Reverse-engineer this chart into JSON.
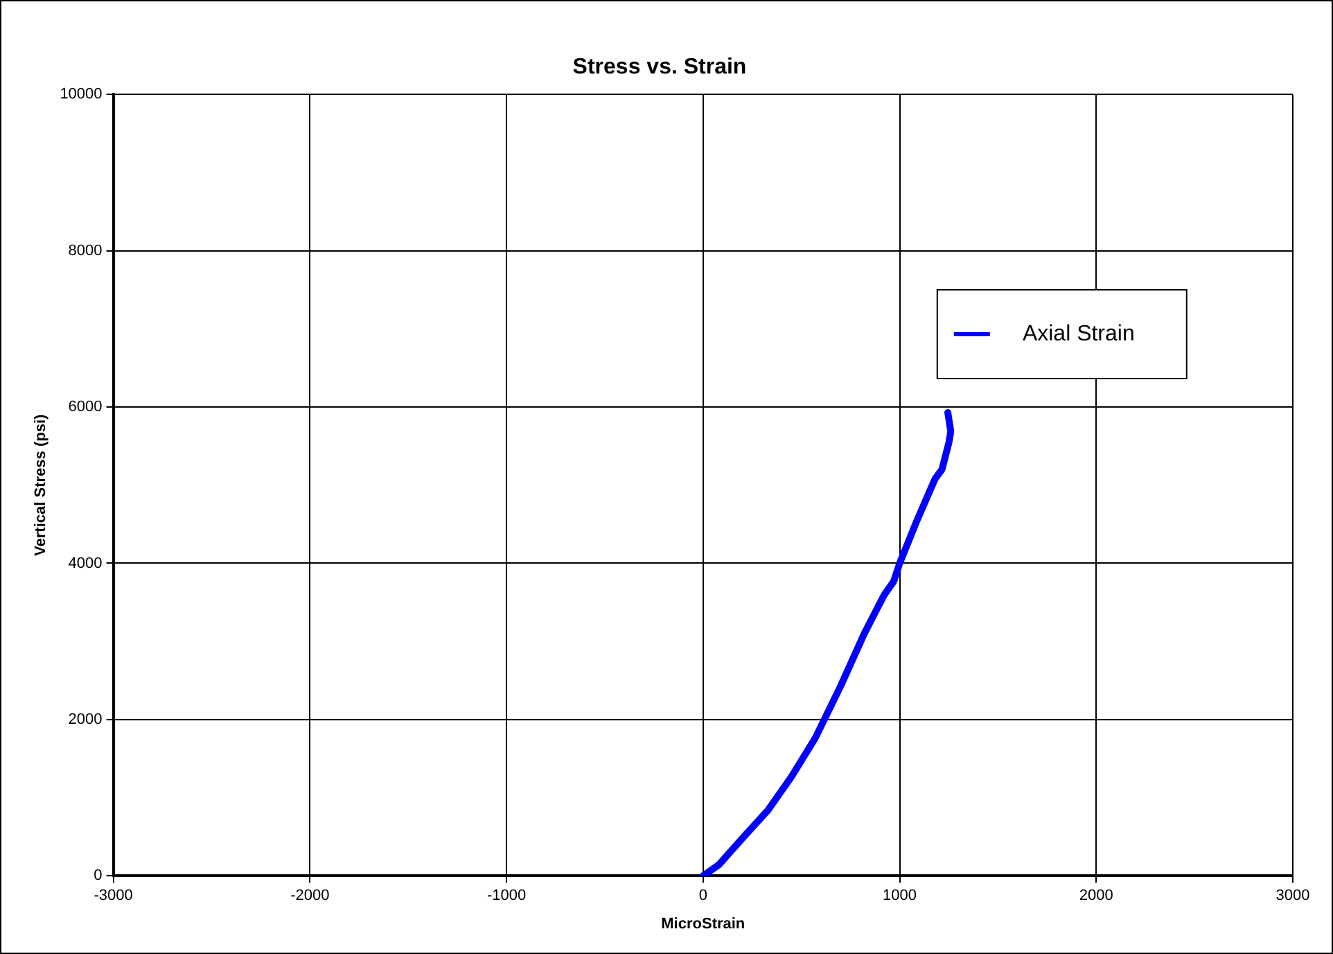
{
  "chart_data": {
    "type": "line",
    "title": "Stress vs. Strain",
    "xlabel": "MicroStrain",
    "ylabel": "Vertical Stress (psi)",
    "x": [
      0,
      80,
      200,
      330,
      450,
      570,
      700,
      820,
      920,
      970,
      1000,
      1090,
      1180,
      1215,
      1250,
      1260,
      1245
    ],
    "series": [
      {
        "name": "Axial Strain",
        "color": "#0000ff",
        "values": [
          0,
          140,
          480,
          840,
          1270,
          1760,
          2430,
          3100,
          3590,
          3770,
          4000,
          4560,
          5080,
          5200,
          5540,
          5690,
          5930
        ]
      }
    ],
    "xlim": [
      -3000,
      3000
    ],
    "xticks": [
      -3000,
      -2000,
      -1000,
      0,
      1000,
      2000,
      3000
    ],
    "ylim": [
      0,
      10000
    ],
    "yticks": [
      0,
      2000,
      4000,
      6000,
      8000,
      10000
    ],
    "grid": true,
    "legend": "top right",
    "marker": "none",
    "line_style": "solid"
  }
}
